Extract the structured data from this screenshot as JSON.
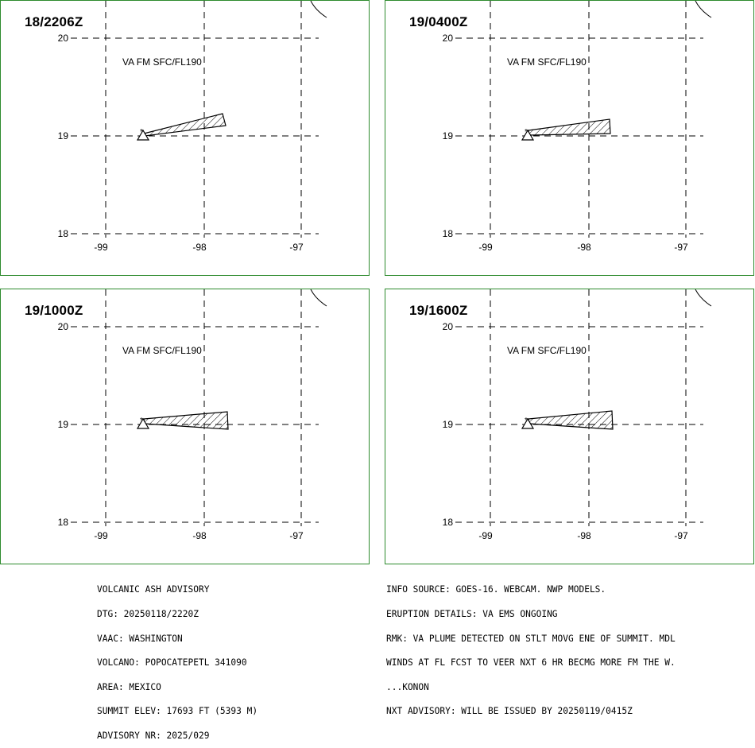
{
  "panels": [
    {
      "time": "18/2206Z",
      "label": "VA FM SFC/FL190"
    },
    {
      "time": "19/0400Z",
      "label": "VA FM SFC/FL190"
    },
    {
      "time": "19/1000Z",
      "label": "VA FM SFC/FL190"
    },
    {
      "time": "19/1600Z",
      "label": "VA FM SFC/FL190"
    }
  ],
  "axes": {
    "lat_labels": [
      "20",
      "19",
      "18"
    ],
    "lon_labels": [
      "-99",
      "-98",
      "-97"
    ]
  },
  "colors": {
    "panel_border": "#2e8b2e",
    "lines": "#000000"
  },
  "volcano_icon": "triangle-volcano-icon",
  "advisory_left": [
    "VOLCANIC ASH ADVISORY",
    "DTG: 20250118/2220Z",
    "VAAC: WASHINGTON",
    "VOLCANO: POPOCATEPETL 341090",
    "AREA: MEXICO",
    "SUMMIT ELEV: 17693 FT (5393 M)",
    "ADVISORY NR: 2025/029"
  ],
  "advisory_right": [
    "INFO SOURCE: GOES-16. WEBCAM. NWP MODELS.",
    "ERUPTION DETAILS: VA EMS ONGOING",
    "RMK: VA PLUME DETECTED ON STLT MOVG ENE OF SUMMIT. MDL",
    "WINDS AT FL FCST TO VEER NXT 6 HR BECMG MORE FM THE W.",
    "...KONON",
    "NXT ADVISORY: WILL BE ISSUED BY 20250119/0415Z"
  ]
}
